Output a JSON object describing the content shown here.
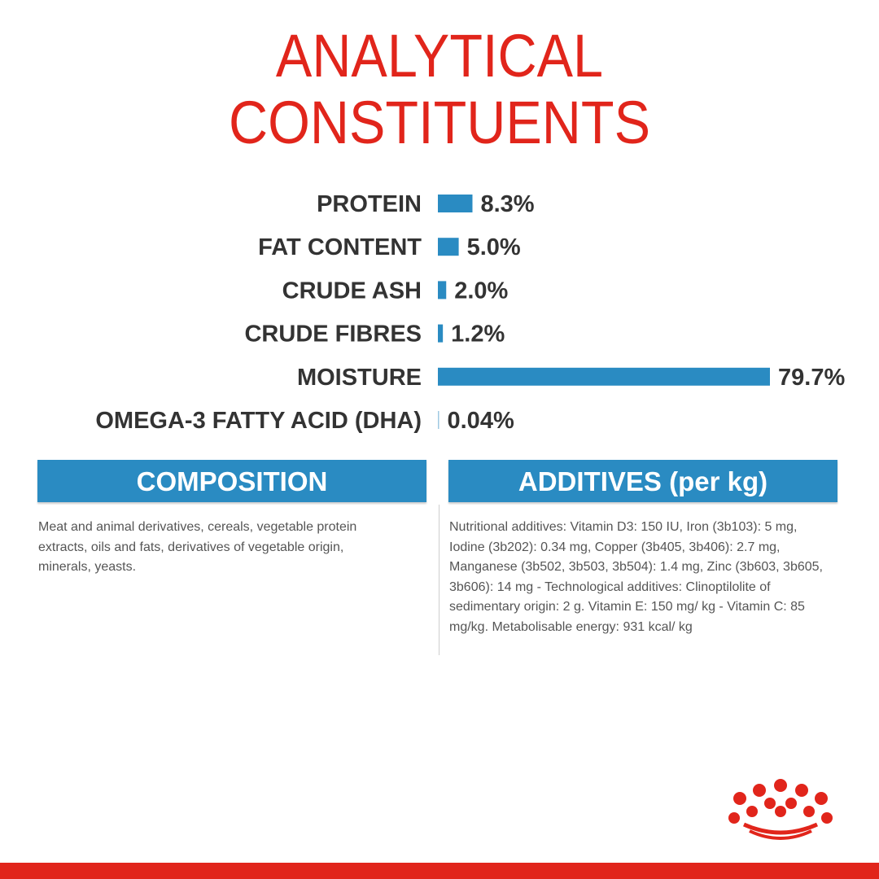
{
  "title": {
    "line1": "ANALYTICAL",
    "line2": "CONSTITUENTS"
  },
  "colors": {
    "title": "#e1251b",
    "bar": "#2a8bc2",
    "label": "#333333",
    "brand_red": "#e1251b"
  },
  "chart_data": {
    "type": "bar",
    "orientation": "horizontal",
    "categories": [
      "PROTEIN",
      "FAT CONTENT",
      "CRUDE ASH",
      "CRUDE FIBRES",
      "MOISTURE",
      "OMEGA-3 FATTY ACID (DHA)"
    ],
    "values": [
      8.3,
      5.0,
      2.0,
      1.2,
      79.7,
      0.04
    ],
    "value_labels": [
      "8.3%",
      "5.0%",
      "2.0%",
      "1.2%",
      "79.7%",
      "0.04%"
    ],
    "unit": "%",
    "xlim": [
      0,
      79.7
    ],
    "grid": false,
    "title": "ANALYTICAL CONSTITUENTS"
  },
  "composition": {
    "heading": "COMPOSITION",
    "text": "Meat and animal derivatives, cereals, vegetable protein extracts, oils and fats, derivatives of vegetable origin, minerals, yeasts."
  },
  "additives": {
    "heading": "ADDITIVES (per kg)",
    "text": "Nutritional additives: Vitamin D3: 150 IU, Iron (3b103): 5 mg, Iodine (3b202): 0.34 mg, Copper (3b405, 3b406): 2.7 mg, Manganese (3b502, 3b503, 3b504): 1.4 mg, Zinc (3b603, 3b605, 3b606): 14 mg - Technological additives: Clinoptilolite of sedimentary origin: 2 g. Vitamin E: 150 mg/ kg - Vitamin C: 85 mg/kg. Metabolisable energy: 931 kcal/ kg"
  },
  "logo_icon": "crown-logo-icon"
}
